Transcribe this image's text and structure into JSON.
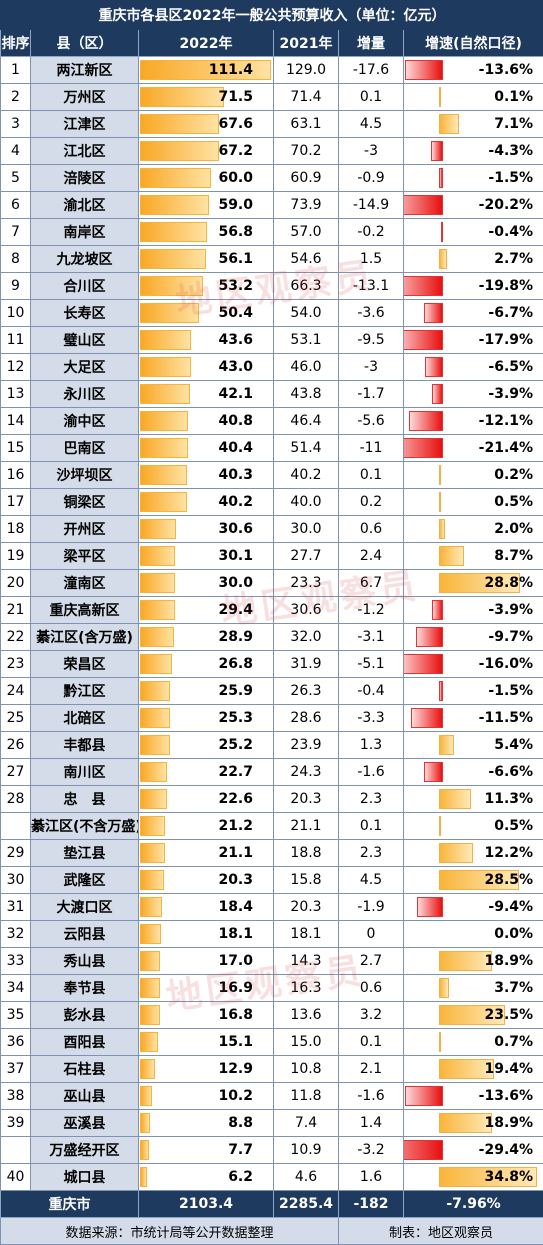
{
  "colors": {
    "header_bg": "#1f3a5f",
    "name_bg": "#d4dce9",
    "bar_orange": "#f9a825",
    "bar_red": "#e81010"
  },
  "watermark_text": "地区观察员",
  "chart_data": {
    "type": "table",
    "title": "重庆市各县区2022年一般公共预算收入（单位：亿元）",
    "headers": {
      "rank": "排序",
      "name": "县（区）",
      "y2022": "2022年",
      "y2021": "2021年",
      "delta": "增量",
      "growth": "增速(自然口径)"
    },
    "rows": [
      {
        "rank": "1",
        "name": "两江新区",
        "v2022": "111.4",
        "v2021": "129.0",
        "delta": "-17.6",
        "growth": "-13.6%",
        "g": -13.6
      },
      {
        "rank": "2",
        "name": "万州区",
        "v2022": "71.5",
        "v2021": "71.4",
        "delta": "0.1",
        "growth": "0.1%",
        "g": 0.1
      },
      {
        "rank": "3",
        "name": "江津区",
        "v2022": "67.6",
        "v2021": "63.1",
        "delta": "4.5",
        "growth": "7.1%",
        "g": 7.1
      },
      {
        "rank": "4",
        "name": "江北区",
        "v2022": "67.2",
        "v2021": "70.2",
        "delta": "-3",
        "growth": "-4.3%",
        "g": -4.3
      },
      {
        "rank": "5",
        "name": "涪陵区",
        "v2022": "60.0",
        "v2021": "60.9",
        "delta": "-0.9",
        "growth": "-1.5%",
        "g": -1.5
      },
      {
        "rank": "6",
        "name": "渝北区",
        "v2022": "59.0",
        "v2021": "73.9",
        "delta": "-14.9",
        "growth": "-20.2%",
        "g": -20.2
      },
      {
        "rank": "7",
        "name": "南岸区",
        "v2022": "56.8",
        "v2021": "57.0",
        "delta": "-0.2",
        "growth": "-0.4%",
        "g": -0.4
      },
      {
        "rank": "8",
        "name": "九龙坡区",
        "v2022": "56.1",
        "v2021": "54.6",
        "delta": "1.5",
        "growth": "2.7%",
        "g": 2.7
      },
      {
        "rank": "9",
        "name": "合川区",
        "v2022": "53.2",
        "v2021": "66.3",
        "delta": "-13.1",
        "growth": "-19.8%",
        "g": -19.8
      },
      {
        "rank": "10",
        "name": "长寿区",
        "v2022": "50.4",
        "v2021": "54.0",
        "delta": "-3.6",
        "growth": "-6.7%",
        "g": -6.7
      },
      {
        "rank": "11",
        "name": "璧山区",
        "v2022": "43.6",
        "v2021": "53.1",
        "delta": "-9.5",
        "growth": "-17.9%",
        "g": -17.9
      },
      {
        "rank": "12",
        "name": "大足区",
        "v2022": "43.0",
        "v2021": "46.0",
        "delta": "-3",
        "growth": "-6.5%",
        "g": -6.5
      },
      {
        "rank": "13",
        "name": "永川区",
        "v2022": "42.1",
        "v2021": "43.8",
        "delta": "-1.7",
        "growth": "-3.9%",
        "g": -3.9
      },
      {
        "rank": "14",
        "name": "渝中区",
        "v2022": "40.8",
        "v2021": "46.4",
        "delta": "-5.6",
        "growth": "-12.1%",
        "g": -12.1
      },
      {
        "rank": "15",
        "name": "巴南区",
        "v2022": "40.4",
        "v2021": "51.4",
        "delta": "-11",
        "growth": "-21.4%",
        "g": -21.4
      },
      {
        "rank": "16",
        "name": "沙坪坝区",
        "v2022": "40.3",
        "v2021": "40.2",
        "delta": "0.1",
        "growth": "0.2%",
        "g": 0.2
      },
      {
        "rank": "17",
        "name": "铜梁区",
        "v2022": "40.2",
        "v2021": "40.0",
        "delta": "0.2",
        "growth": "0.5%",
        "g": 0.5
      },
      {
        "rank": "18",
        "name": "开州区",
        "v2022": "30.6",
        "v2021": "30.0",
        "delta": "0.6",
        "growth": "2.0%",
        "g": 2.0
      },
      {
        "rank": "19",
        "name": "梁平区",
        "v2022": "30.1",
        "v2021": "27.7",
        "delta": "2.4",
        "growth": "8.7%",
        "g": 8.7
      },
      {
        "rank": "20",
        "name": "潼南区",
        "v2022": "30.0",
        "v2021": "23.3",
        "delta": "6.7",
        "growth": "28.8%",
        "g": 28.8
      },
      {
        "rank": "21",
        "name": "重庆高新区",
        "v2022": "29.4",
        "v2021": "30.6",
        "delta": "-1.2",
        "growth": "-3.9%",
        "g": -3.9
      },
      {
        "rank": "22",
        "name": "綦江区(含万盛)",
        "v2022": "28.9",
        "v2021": "32.0",
        "delta": "-3.1",
        "growth": "-9.7%",
        "g": -9.7
      },
      {
        "rank": "23",
        "name": "荣昌区",
        "v2022": "26.8",
        "v2021": "31.9",
        "delta": "-5.1",
        "growth": "-16.0%",
        "g": -16.0
      },
      {
        "rank": "24",
        "name": "黔江区",
        "v2022": "25.9",
        "v2021": "26.3",
        "delta": "-0.4",
        "growth": "-1.5%",
        "g": -1.5
      },
      {
        "rank": "25",
        "name": "北碚区",
        "v2022": "25.3",
        "v2021": "28.6",
        "delta": "-3.3",
        "growth": "-11.5%",
        "g": -11.5
      },
      {
        "rank": "26",
        "name": "丰都县",
        "v2022": "25.2",
        "v2021": "23.9",
        "delta": "1.3",
        "growth": "5.4%",
        "g": 5.4
      },
      {
        "rank": "27",
        "name": "南川区",
        "v2022": "22.7",
        "v2021": "24.3",
        "delta": "-1.6",
        "growth": "-6.6%",
        "g": -6.6
      },
      {
        "rank": "28",
        "name": "忠　县",
        "v2022": "22.6",
        "v2021": "20.3",
        "delta": "2.3",
        "growth": "11.3%",
        "g": 11.3
      },
      {
        "rank": "",
        "name": "綦江区(不含万盛)",
        "v2022": "21.2",
        "v2021": "21.1",
        "delta": "0.1",
        "growth": "0.5%",
        "g": 0.5
      },
      {
        "rank": "29",
        "name": "垫江县",
        "v2022": "21.1",
        "v2021": "18.8",
        "delta": "2.3",
        "growth": "12.2%",
        "g": 12.2
      },
      {
        "rank": "30",
        "name": "武隆区",
        "v2022": "20.3",
        "v2021": "15.8",
        "delta": "4.5",
        "growth": "28.5%",
        "g": 28.5
      },
      {
        "rank": "31",
        "name": "大渡口区",
        "v2022": "18.4",
        "v2021": "20.3",
        "delta": "-1.9",
        "growth": "-9.4%",
        "g": -9.4
      },
      {
        "rank": "32",
        "name": "云阳县",
        "v2022": "18.1",
        "v2021": "18.1",
        "delta": "0",
        "growth": "0.0%",
        "g": 0.0
      },
      {
        "rank": "33",
        "name": "秀山县",
        "v2022": "17.0",
        "v2021": "14.3",
        "delta": "2.7",
        "growth": "18.9%",
        "g": 18.9
      },
      {
        "rank": "34",
        "name": "奉节县",
        "v2022": "16.9",
        "v2021": "16.3",
        "delta": "0.6",
        "growth": "3.7%",
        "g": 3.7
      },
      {
        "rank": "35",
        "name": "彭水县",
        "v2022": "16.8",
        "v2021": "13.6",
        "delta": "3.2",
        "growth": "23.5%",
        "g": 23.5
      },
      {
        "rank": "36",
        "name": "酉阳县",
        "v2022": "15.1",
        "v2021": "15.0",
        "delta": "0.1",
        "growth": "0.7%",
        "g": 0.7
      },
      {
        "rank": "37",
        "name": "石柱县",
        "v2022": "12.9",
        "v2021": "10.8",
        "delta": "2.1",
        "growth": "19.4%",
        "g": 19.4
      },
      {
        "rank": "38",
        "name": "巫山县",
        "v2022": "10.2",
        "v2021": "11.8",
        "delta": "-1.6",
        "growth": "-13.6%",
        "g": -13.6
      },
      {
        "rank": "39",
        "name": "巫溪县",
        "v2022": "8.8",
        "v2021": "7.4",
        "delta": "1.4",
        "growth": "18.9%",
        "g": 18.9
      },
      {
        "rank": "",
        "name": "万盛经开区",
        "v2022": "7.7",
        "v2021": "10.9",
        "delta": "-3.2",
        "growth": "-29.4%",
        "g": -29.4
      },
      {
        "rank": "40",
        "name": "城口县",
        "v2022": "6.2",
        "v2021": "4.6",
        "delta": "1.6",
        "growth": "34.8%",
        "g": 34.8
      }
    ],
    "total": {
      "name": "重庆市",
      "v2022": "2103.4",
      "v2021": "2285.4",
      "delta": "-182",
      "growth": "-7.96%"
    },
    "footer": {
      "source": "数据来源：市统计局等公开数据整理",
      "maker": "制表：地区观察员"
    }
  }
}
